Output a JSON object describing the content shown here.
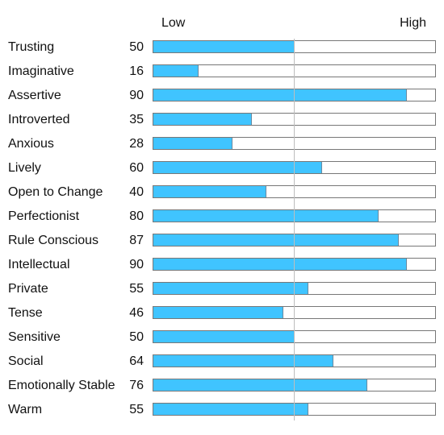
{
  "scale": {
    "low_label": "Low",
    "high_label": "High"
  },
  "colors": {
    "bar_fill": "#40c4ff",
    "track_border": "#777777",
    "midline": "#bdbdbd"
  },
  "chart_data": {
    "type": "bar",
    "orientation": "horizontal",
    "categories": [
      "Trusting",
      "Imaginative",
      "Assertive",
      "Introverted",
      "Anxious",
      "Lively",
      "Open to Change",
      "Perfectionist",
      "Rule Conscious",
      "Intellectual",
      "Private",
      "Tense",
      "Sensitive",
      "Social",
      "Emotionally Stable",
      "Warm"
    ],
    "values": [
      50,
      16,
      90,
      35,
      28,
      60,
      40,
      80,
      87,
      90,
      55,
      46,
      50,
      64,
      76,
      55
    ],
    "xlim": [
      0,
      100
    ],
    "reference_line": 50,
    "grid": false,
    "title": "",
    "xlabel": "",
    "ylabel": ""
  }
}
